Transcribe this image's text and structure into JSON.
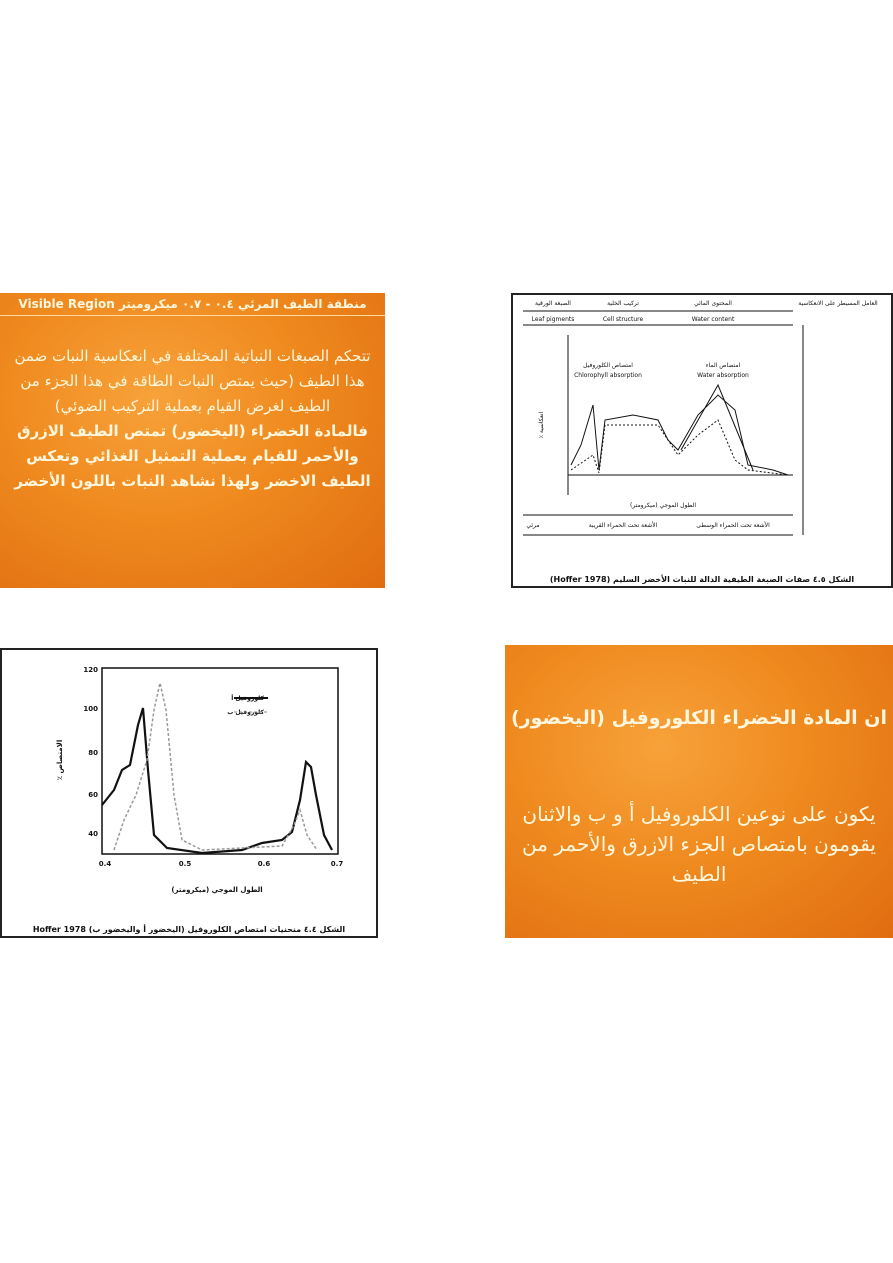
{
  "slides": [
    {
      "title": "منطقة الطيف المرئي ٠.٤ - ٠.٧ ميكروميتر Visible Region",
      "body": "تتحكم الصبغات النباتية المختلفة في انعكاسية النبات ضمن هذا الطيف (حيث يمتص النبات الطاقة في هذا الجزء من الطيف لغرض القيام بعملية التركيب الضوئي)",
      "bold": "فالمادة الخضراء (اليخضور) تمتص الطيف الازرق والأحمر للقيام بعملية التمثيل الغذائي وتعكس الطيف الاخضر ولهذا نشاهد النبات باللون الأخضر"
    },
    {
      "headers": [
        "الصبغة الورقية",
        "تركيب الخلية",
        "المحتوى المائي",
        "العامل المسيطر على الانعكاسية"
      ],
      "headers_en": [
        "Leaf pigments",
        "Cell structure",
        "Water content"
      ],
      "labels": [
        "امتصاص الكلوروفيل",
        "Chlorophyll absorption",
        "امتصاص الماء",
        "Water absorption"
      ],
      "y_label": "٪ انعكاسية",
      "x_label": "الطول الموجي (ميكرومتر)",
      "regions": [
        "مرئي",
        "الأشعة تحت الحمراء القريبة",
        "الأشعة تحت الحمراء الوسطى"
      ],
      "caption": "الشكل ٤.٥ صفات الصبغة الطيفية الدالة للنبات الأخضر السليم (Hoffer 1978)"
    },
    {
      "y_ticks": [
        "120",
        "100",
        "80",
        "60",
        "40"
      ],
      "x_ticks": [
        "0.4",
        "0.5",
        "0.6",
        "0.7"
      ],
      "legend": [
        "كلوروفيل أ",
        "كلوروفيل ب"
      ],
      "y_label": "٪ الامتصاص",
      "x_label": "الطول الموجي (ميكرومتر)",
      "caption": "الشكل ٤.٤ منحنيات امتصاص الكلوروفيل (اليخضور أ واليخضور ب) Hoffer 1978"
    },
    {
      "title": "ان المادة الخضراء الكلوروفيل (اليخضور)",
      "body": "يكون على نوعين الكلوروفيل أ و ب والاثنان يقومون بامتصاص الجزء الازرق والأحمر من الطيف"
    }
  ]
}
